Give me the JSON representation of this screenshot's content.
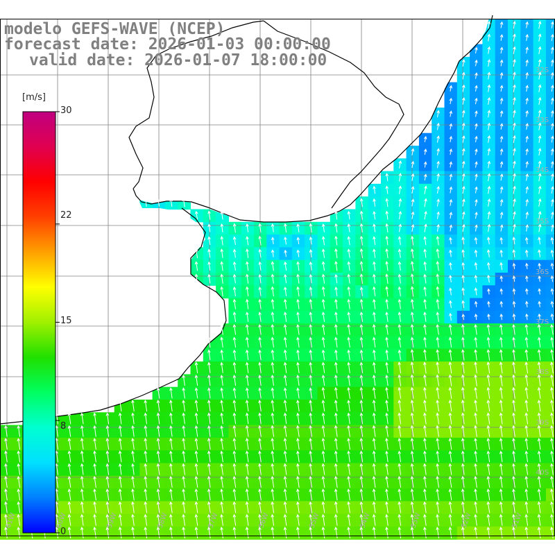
{
  "title": {
    "line1": "modelo GEFS-WAVE (NCEP)",
    "line2": "forecast date: 2026-01-03 00:00:00",
    "line3": "valid date: 2026-01-07 18:00:00"
  },
  "colorbar": {
    "unit": "[m/s]",
    "ticks": [
      "30",
      "22",
      "15",
      "8",
      "0"
    ],
    "tick_values": [
      30,
      22,
      15,
      8,
      0
    ],
    "range": [
      0,
      30
    ],
    "colors": [
      "#0000ff",
      "#0080ff",
      "#00e0ff",
      "#00ffd0",
      "#00ff60",
      "#20e000",
      "#a0f000",
      "#ffff00",
      "#ffa000",
      "#ff4000",
      "#ff0000",
      "#e00050",
      "#c00080"
    ]
  },
  "map": {
    "variable": "wind speed",
    "lon_labels": [
      "61W",
      "60W",
      "59W",
      "58W",
      "57W",
      "56W",
      "55W",
      "54W",
      "53W",
      "52W",
      "51W"
    ],
    "lat_labels": [
      "32S",
      "33S",
      "34S",
      "35S",
      "36S",
      "37S",
      "38S",
      "39S",
      "40S"
    ],
    "land_color": "#ffffff",
    "coast_color": "#000000",
    "grid_color": "#808080"
  }
}
